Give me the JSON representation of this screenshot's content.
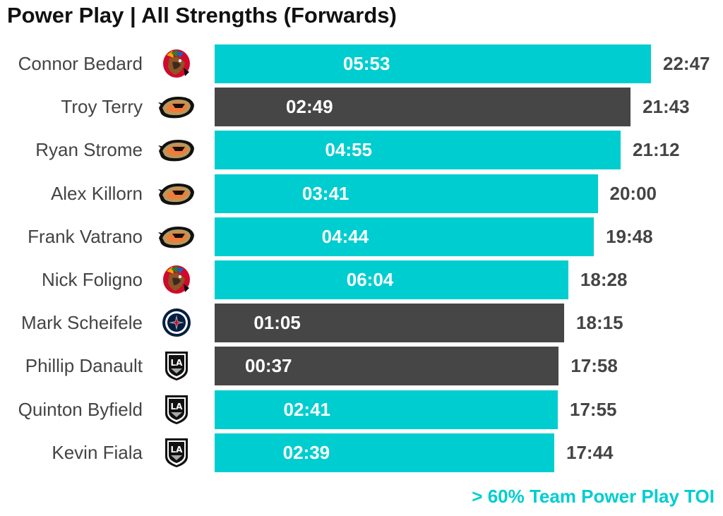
{
  "colors": {
    "highlight": "#00CDCF",
    "default": "#464646",
    "total_text": "#444444",
    "name_text": "#444444"
  },
  "chart_data": {
    "type": "bar",
    "orientation": "horizontal",
    "title": "Power Play | All Strengths (Forwards)",
    "note": "> 60% Team Power Play TOI",
    "value_units": "mm:ss",
    "rows": [
      {
        "player": "Connor Bedard",
        "team_logo": "chicago-blackhawks-logo",
        "total_toi": "22:47",
        "total_seconds": 1367,
        "pp_toi": "05:53",
        "highlight": true
      },
      {
        "player": "Troy Terry",
        "team_logo": "anaheim-ducks-logo",
        "total_toi": "21:43",
        "total_seconds": 1303,
        "pp_toi": "02:49",
        "highlight": false
      },
      {
        "player": "Ryan Strome",
        "team_logo": "anaheim-ducks-logo",
        "total_toi": "21:12",
        "total_seconds": 1272,
        "pp_toi": "04:55",
        "highlight": true
      },
      {
        "player": "Alex Killorn",
        "team_logo": "anaheim-ducks-logo",
        "total_toi": "20:00",
        "total_seconds": 1200,
        "pp_toi": "03:41",
        "highlight": true
      },
      {
        "player": "Frank Vatrano",
        "team_logo": "anaheim-ducks-logo",
        "total_toi": "19:48",
        "total_seconds": 1188,
        "pp_toi": "04:44",
        "highlight": true
      },
      {
        "player": "Nick Foligno",
        "team_logo": "chicago-blackhawks-logo",
        "total_toi": "18:28",
        "total_seconds": 1108,
        "pp_toi": "06:04",
        "highlight": true
      },
      {
        "player": "Mark Scheifele",
        "team_logo": "winnipeg-jets-logo",
        "total_toi": "18:15",
        "total_seconds": 1095,
        "pp_toi": "01:05",
        "highlight": false
      },
      {
        "player": "Phillip Danault",
        "team_logo": "los-angeles-kings-logo",
        "total_toi": "17:58",
        "total_seconds": 1078,
        "pp_toi": "00:37",
        "highlight": false
      },
      {
        "player": "Quinton Byfield",
        "team_logo": "los-angeles-kings-logo",
        "total_toi": "17:55",
        "total_seconds": 1075,
        "pp_toi": "02:41",
        "highlight": true
      },
      {
        "player": "Kevin Fiala",
        "team_logo": "los-angeles-kings-logo",
        "total_toi": "17:44",
        "total_seconds": 1064,
        "pp_toi": "02:39",
        "highlight": true
      }
    ],
    "grid": false,
    "legend": "bottom-right"
  }
}
